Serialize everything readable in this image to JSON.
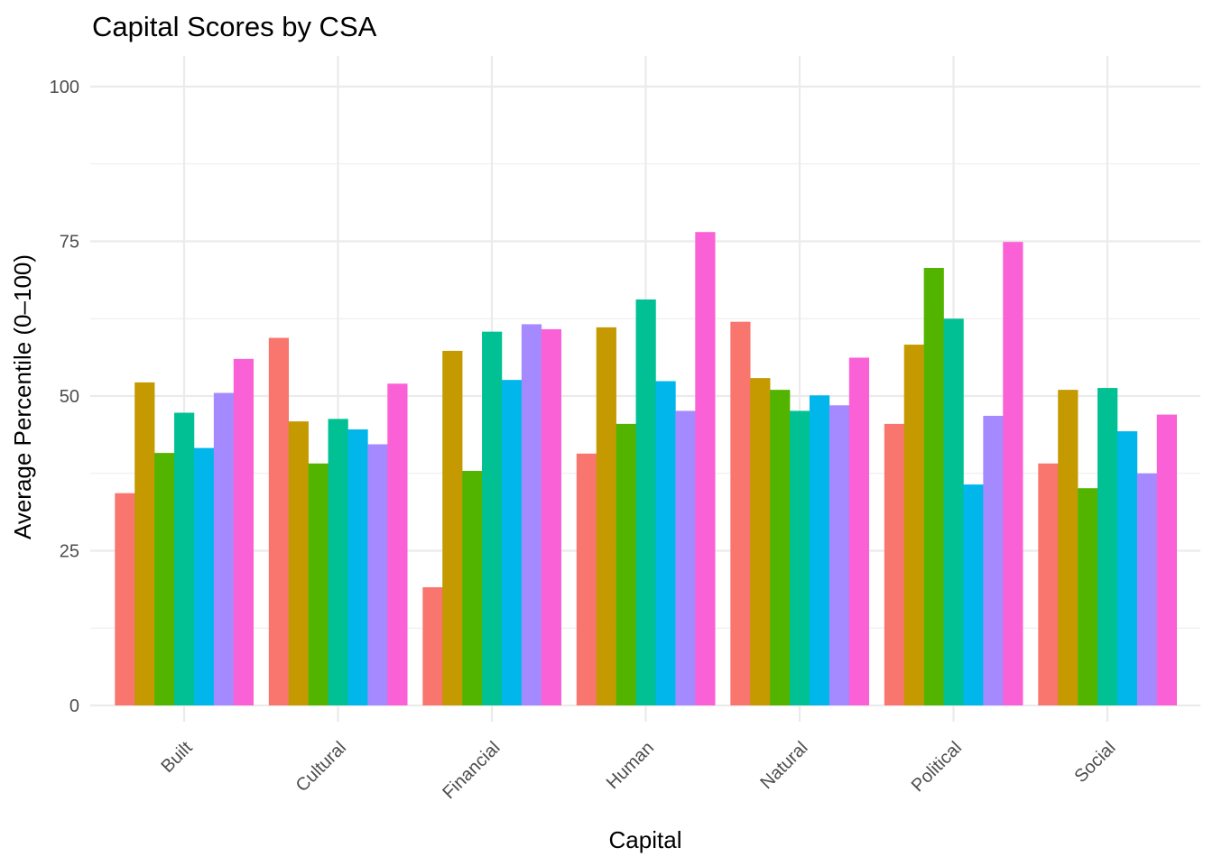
{
  "chart_data": {
    "type": "bar",
    "title": "Capital Scores by CSA",
    "xlabel": "Capital",
    "ylabel": "Average Percentile (0–100)",
    "categories": [
      "Built",
      "Cultural",
      "Financial",
      "Human",
      "Natural",
      "Political",
      "Social"
    ],
    "ylim": [
      0,
      100
    ],
    "yticks": [
      "0",
      "25",
      "50",
      "75",
      "100"
    ],
    "grid": true,
    "legend": "none",
    "series": [
      {
        "color": "#F8766D",
        "values": [
          34.3,
          59.4,
          19.1,
          40.7,
          62.0,
          45.5,
          39.1
        ]
      },
      {
        "color": "#C49A00",
        "values": [
          52.2,
          45.9,
          57.3,
          61.1,
          52.9,
          58.3,
          51.0
        ]
      },
      {
        "color": "#53B400",
        "values": [
          40.8,
          39.1,
          37.9,
          45.5,
          51.0,
          70.7,
          35.1
        ]
      },
      {
        "color": "#00C094",
        "values": [
          47.3,
          46.3,
          60.4,
          65.6,
          47.6,
          62.5,
          51.3
        ]
      },
      {
        "color": "#00B6EB",
        "values": [
          41.6,
          44.6,
          52.6,
          52.4,
          50.1,
          35.7,
          44.3
        ]
      },
      {
        "color": "#A58AFF",
        "values": [
          50.5,
          42.2,
          61.6,
          47.6,
          48.5,
          46.8,
          37.5
        ]
      },
      {
        "color": "#FB61D7",
        "values": [
          56.0,
          52.0,
          60.8,
          76.5,
          56.2,
          74.9,
          47.0
        ]
      }
    ]
  }
}
